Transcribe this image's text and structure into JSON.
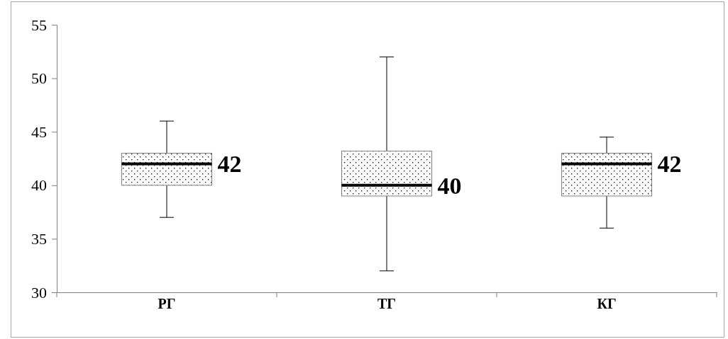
{
  "chart_data": {
    "type": "box",
    "categories": [
      "РГ",
      "ТГ",
      "КГ"
    ],
    "boxes": [
      {
        "low": 37,
        "q1": 40,
        "median": 42,
        "q3": 43,
        "high": 46
      },
      {
        "low": 32,
        "q1": 39,
        "median": 40,
        "q3": 43.2,
        "high": 52
      },
      {
        "low": 36,
        "q1": 39,
        "median": 42,
        "q3": 43,
        "high": 44.5
      }
    ],
    "ylim": [
      30,
      55
    ],
    "yticks": [
      30,
      35,
      40,
      45,
      50,
      55
    ],
    "annotations": [
      {
        "text": "42",
        "x": "РГ",
        "y": 42
      },
      {
        "text": "40",
        "x": "ТГ",
        "y": 40
      },
      {
        "text": "42",
        "x": "КГ",
        "y": 42
      }
    ]
  }
}
